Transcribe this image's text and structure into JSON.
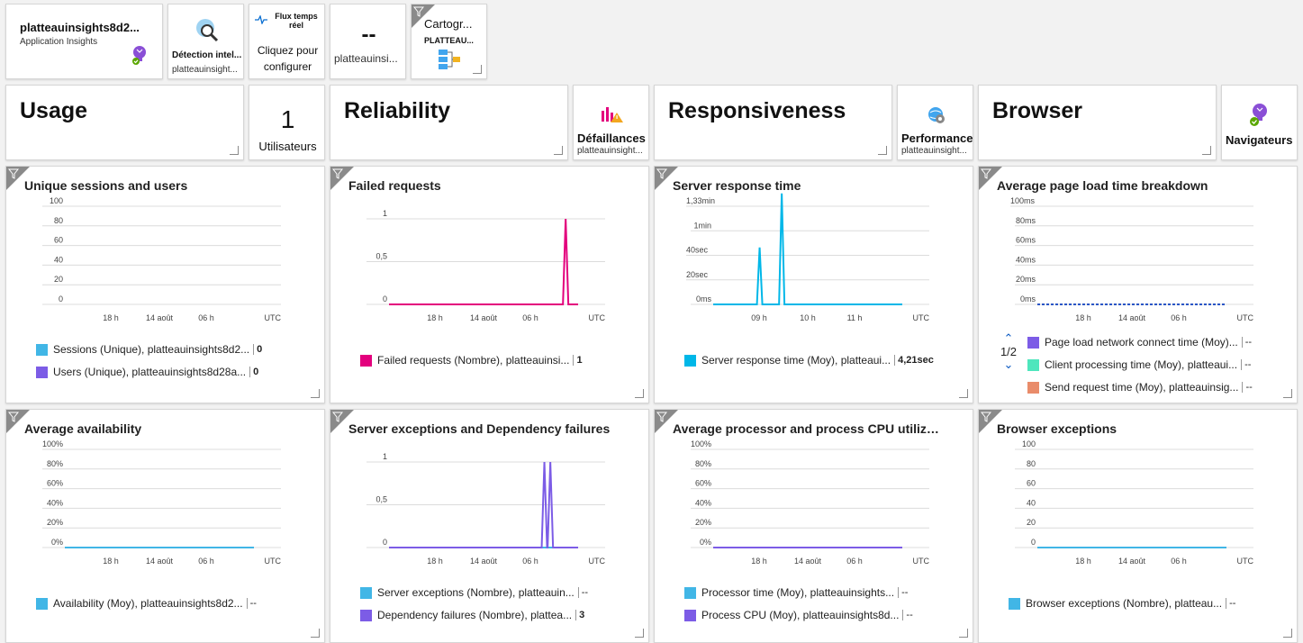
{
  "top_tiles": {
    "app": {
      "name": "platteauinsights8d2...",
      "type": "Application Insights"
    },
    "smart_detection": {
      "label": "Détection intel...",
      "sub": "platteauinsight..."
    },
    "live": {
      "title": "Flux temps réel",
      "line1": "Cliquez pour",
      "line2": "configurer"
    },
    "metric": {
      "value": "--",
      "sub": "platteauinsi..."
    },
    "app_map": {
      "label": "Cartogr...",
      "sub": "PLATTEAU..."
    }
  },
  "section_tiles": {
    "usage": {
      "heading": "Usage",
      "users_count": "1",
      "users_label": "Utilisateurs"
    },
    "reliability": {
      "heading": "Reliability",
      "failures_label": "Défaillances",
      "failures_sub": "platteauinsight..."
    },
    "responsiveness": {
      "heading": "Responsiveness",
      "perf_label": "Performance",
      "perf_sub": "platteauinsight..."
    },
    "browser": {
      "heading": "Browser",
      "browsers_label": "Navigateurs"
    }
  },
  "colors": {
    "blue": "#41b6e6",
    "purple": "#7c5ce6",
    "magenta": "#e3007d",
    "teal": "#4ee6bd",
    "salmon": "#e98c6a",
    "cyan": "#00b7e8",
    "dark_blue": "#2a56c6"
  },
  "charts": [
    {
      "title": "Unique sessions and users",
      "chart_data": {
        "type": "line",
        "y_ticks": [
          "100",
          "80",
          "60",
          "40",
          "20",
          "0"
        ],
        "x_ticks": [
          "18 h",
          "14 août",
          "06 h"
        ],
        "x_unit": "UTC",
        "series": [
          {
            "name": "Sessions (Unique), platteauinsights8d2...",
            "value": "0",
            "color": "#41b6e6"
          },
          {
            "name": "Users (Unique), platteauinsights8d28a...",
            "value": "0",
            "color": "#7c5ce6"
          }
        ]
      }
    },
    {
      "title": "Failed requests",
      "chart_data": {
        "type": "line",
        "y_ticks": [
          "1",
          "0,5",
          "0"
        ],
        "x_ticks": [
          "18 h",
          "14 août",
          "06 h"
        ],
        "x_unit": "UTC",
        "series": [
          {
            "name": "Failed requests (Nombre), platteauinsi...",
            "value": "1",
            "color": "#e3007d",
            "spikes": [
              {
                "x": 0.985,
                "y": 1
              }
            ]
          }
        ]
      }
    },
    {
      "title": "Server response time",
      "chart_data": {
        "type": "line",
        "y_ticks": [
          "1,33min",
          "1min",
          "40sec",
          "20sec",
          "0ms"
        ],
        "x_ticks": [
          "09 h",
          "10 h",
          "11 h"
        ],
        "x_unit": "UTC",
        "series": [
          {
            "name": "Server response time (Moy), platteaui...",
            "value": "4,21sec",
            "color": "#00b7e8",
            "spikes": [
              {
                "x": 0.22,
                "y": 0.58
              },
              {
                "x": 0.35,
                "y": 1.13
              }
            ]
          }
        ]
      }
    },
    {
      "title": "Average page load time breakdown",
      "chart_data": {
        "type": "line",
        "y_ticks": [
          "100ms",
          "80ms",
          "60ms",
          "40ms",
          "20ms",
          "0ms"
        ],
        "x_ticks": [
          "18 h",
          "14 août",
          "06 h"
        ],
        "x_unit": "UTC",
        "pager": "1/2",
        "series": [
          {
            "name": "Page load network connect time (Moy)...",
            "value": "--",
            "color": "#7c5ce6"
          },
          {
            "name": "Client processing time (Moy), platteaui...",
            "value": "--",
            "color": "#4ee6bd"
          },
          {
            "name": "Send request time (Moy), platteauinsig...",
            "value": "--",
            "color": "#e98c6a"
          }
        ]
      }
    },
    {
      "title": "Average availability",
      "chart_data": {
        "type": "line",
        "y_ticks": [
          "100%",
          "80%",
          "60%",
          "40%",
          "20%",
          "0%"
        ],
        "x_ticks": [
          "18 h",
          "14 août",
          "06 h"
        ],
        "x_unit": "UTC",
        "series": [
          {
            "name": "Availability (Moy), platteauinsights8d2...",
            "value": "--",
            "color": "#41b6e6"
          }
        ]
      }
    },
    {
      "title": "Server exceptions and Dependency failures",
      "chart_data": {
        "type": "line",
        "y_ticks": [
          "1",
          "0,5",
          "0"
        ],
        "x_ticks": [
          "18 h",
          "14 août",
          "06 h"
        ],
        "x_unit": "UTC",
        "series": [
          {
            "name": "Server exceptions (Nombre), platteauin...",
            "value": "--",
            "color": "#41b6e6"
          },
          {
            "name": "Dependency failures (Nombre), plattea...",
            "value": "3",
            "color": "#7c5ce6",
            "spikes": [
              {
                "x": 0.86,
                "y": 1
              },
              {
                "x": 0.895,
                "y": 1
              }
            ]
          }
        ]
      }
    },
    {
      "title": "Average processor and process CPU utilizati...",
      "chart_data": {
        "type": "line",
        "y_ticks": [
          "100%",
          "80%",
          "60%",
          "40%",
          "20%",
          "0%"
        ],
        "x_ticks": [
          "18 h",
          "14 août",
          "06 h"
        ],
        "x_unit": "UTC",
        "series": [
          {
            "name": "Processor time (Moy), platteauinsights...",
            "value": "--",
            "color": "#41b6e6"
          },
          {
            "name": "Process CPU (Moy), platteauinsights8d...",
            "value": "--",
            "color": "#7c5ce6"
          }
        ]
      }
    },
    {
      "title": "Browser exceptions",
      "chart_data": {
        "type": "line",
        "y_ticks": [
          "100",
          "80",
          "60",
          "40",
          "20",
          "0"
        ],
        "x_ticks": [
          "18 h",
          "14 août",
          "06 h"
        ],
        "x_unit": "UTC",
        "series": [
          {
            "name": "Browser exceptions (Nombre), platteau...",
            "value": "--",
            "color": "#41b6e6"
          }
        ]
      }
    }
  ]
}
